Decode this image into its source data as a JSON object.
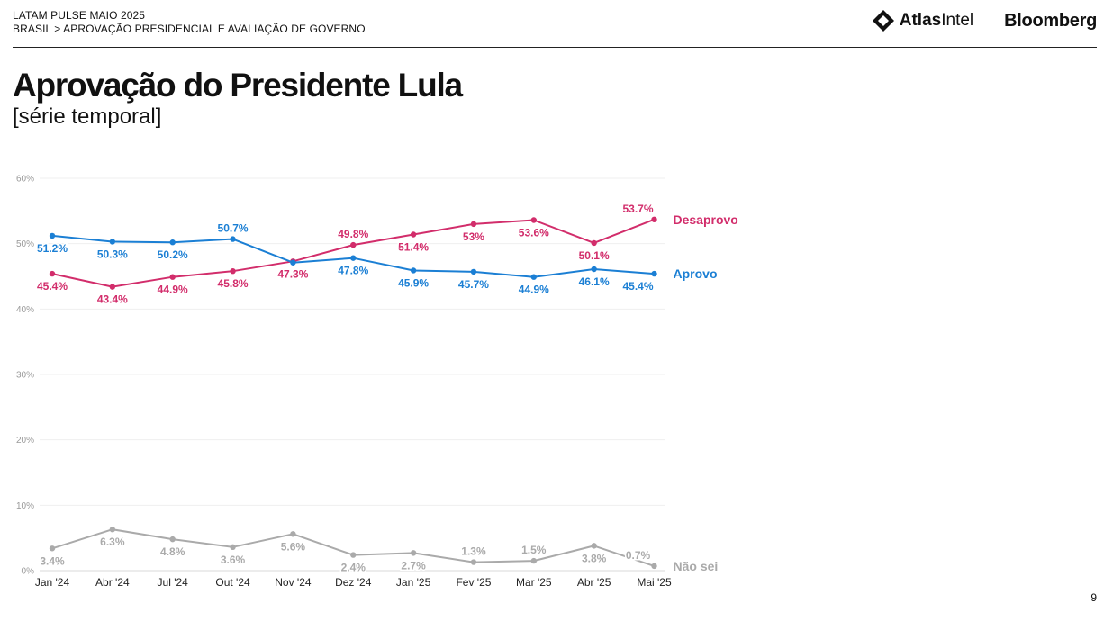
{
  "header": {
    "report": "LATAM PULSE MAIO 2025",
    "breadcrumb": "BRASIL > APROVAÇÃO PRESIDENCIAL E AVALIAÇÃO DE GOVERNO",
    "logo_atlas_bold": "Atlas",
    "logo_atlas_light": "Intel",
    "logo_bloomberg": "Bloomberg"
  },
  "page_number": "9",
  "chart_data": {
    "type": "line",
    "title": "Aprovação do Presidente Lula",
    "subtitle": "[série temporal]",
    "xlabel": "",
    "ylabel": "",
    "categories": [
      "Jan '24",
      "Abr '24",
      "Jul '24",
      "Out '24",
      "Nov '24",
      "Dez '24",
      "Jan '25",
      "Fev '25",
      "Mar '25",
      "Abr '25",
      "Mai '25"
    ],
    "ylim": [
      0,
      60
    ],
    "yticks": [
      0,
      10,
      20,
      30,
      40,
      50,
      60
    ],
    "ytick_labels": [
      "0%",
      "10%",
      "20%",
      "30%",
      "40%",
      "50%",
      "60%"
    ],
    "grid": true,
    "series": [
      {
        "name": "Desaprovo",
        "color": "#d22d6b",
        "values": [
          45.4,
          43.4,
          44.9,
          45.8,
          47.3,
          49.8,
          51.4,
          53,
          53.6,
          50.1,
          53.7
        ],
        "labels": [
          "45.4%",
          "43.4%",
          "44.9%",
          "45.8%",
          "47.3%",
          "49.8%",
          "51.4%",
          "53%",
          "53.6%",
          "50.1%",
          "53.7%"
        ]
      },
      {
        "name": "Aprovo",
        "color": "#1b7fd4",
        "values": [
          51.2,
          50.3,
          50.2,
          50.7,
          47.1,
          47.8,
          45.9,
          45.7,
          44.9,
          46.1,
          45.4
        ],
        "labels": [
          "51.2%",
          "50.3%",
          "50.2%",
          "50.7%",
          "",
          "47.8%",
          "45.9%",
          "45.7%",
          "44.9%",
          "46.1%",
          "45.4%"
        ]
      },
      {
        "name": "Não sei",
        "color": "#aaaaaa",
        "values": [
          3.4,
          6.3,
          4.8,
          3.6,
          5.6,
          2.4,
          2.7,
          1.3,
          1.5,
          3.8,
          0.7
        ],
        "labels": [
          "3.4%",
          "6.3%",
          "4.8%",
          "3.6%",
          "5.6%",
          "2.4%",
          "2.7%",
          "1.3%",
          "1.5%",
          "3.8%",
          "0.7%"
        ]
      }
    ]
  }
}
